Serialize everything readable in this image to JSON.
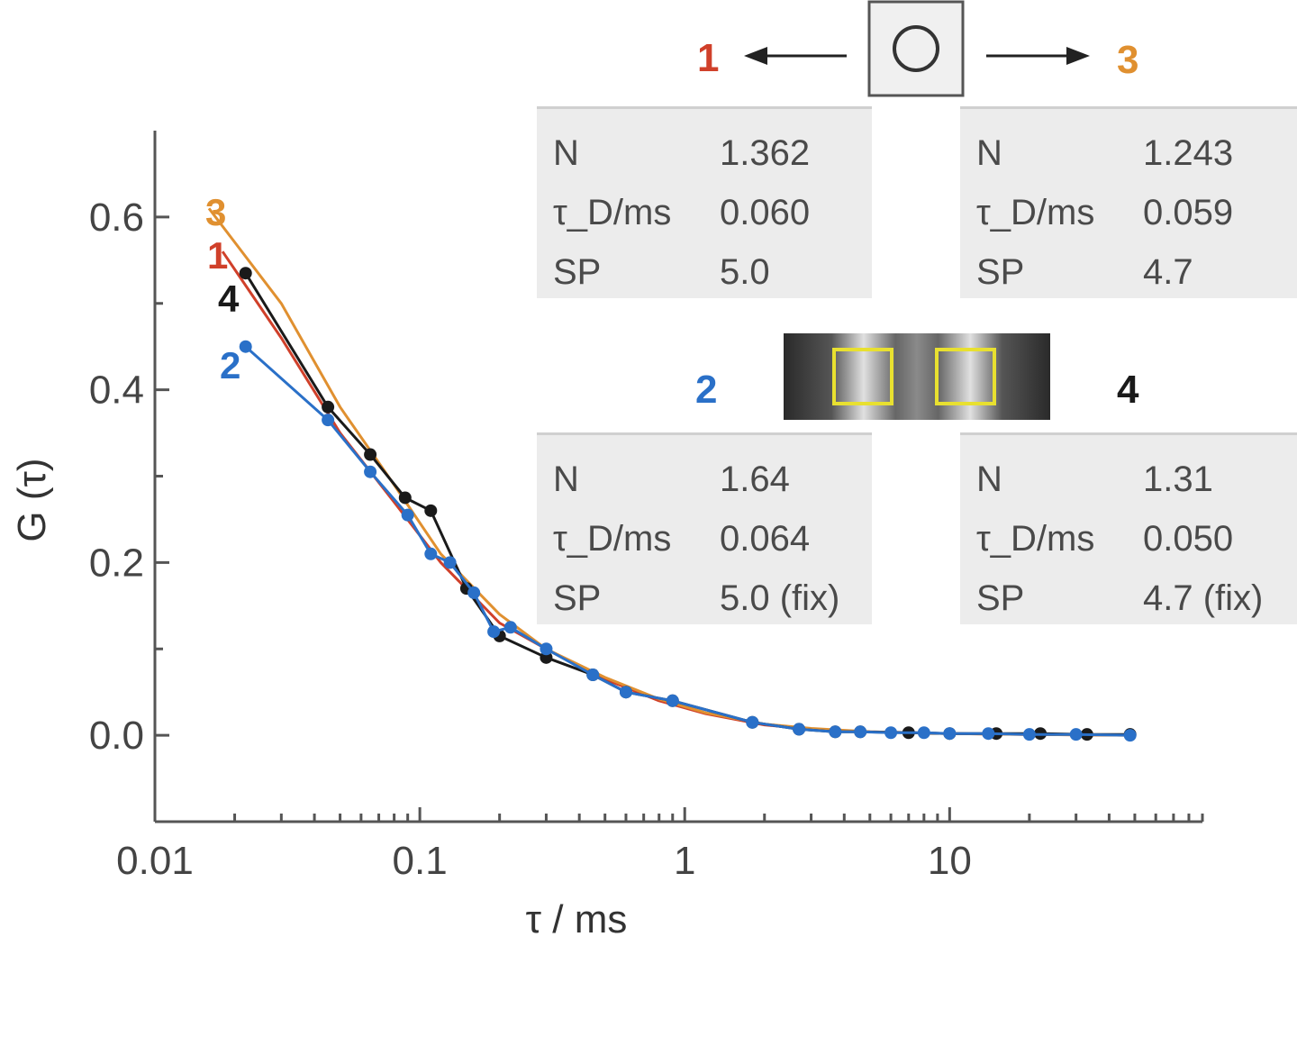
{
  "chart_data": {
    "type": "line",
    "xlabel": "τ / ms",
    "ylabel": "G (τ)",
    "xscale": "log",
    "xlim": [
      0.01,
      90
    ],
    "ylim": [
      -0.1,
      0.7
    ],
    "x_ticks": [
      "0.01",
      "0.1",
      "1",
      "10"
    ],
    "y_ticks": [
      "0.0",
      "0.2",
      "0.4",
      "0.6"
    ],
    "grid": false,
    "series": [
      {
        "name": "1",
        "color": "#d0402a",
        "kind": "fit",
        "x": [
          0.018,
          0.03,
          0.05,
          0.08,
          0.12,
          0.2,
          0.3,
          0.5,
          0.8,
          1.2,
          2,
          3,
          5,
          10,
          20,
          48
        ],
        "values": [
          0.56,
          0.46,
          0.35,
          0.27,
          0.2,
          0.13,
          0.1,
          0.065,
          0.04,
          0.025,
          0.012,
          0.007,
          0.004,
          0.002,
          0.001,
          0.0
        ]
      },
      {
        "name": "3",
        "color": "#e09030",
        "kind": "fit",
        "x": [
          0.016,
          0.03,
          0.05,
          0.08,
          0.12,
          0.2,
          0.3,
          0.5,
          0.8,
          1.2,
          2,
          3,
          5,
          10,
          20,
          48
        ],
        "values": [
          0.61,
          0.5,
          0.38,
          0.29,
          0.21,
          0.14,
          0.1,
          0.067,
          0.042,
          0.026,
          0.013,
          0.008,
          0.004,
          0.002,
          0.001,
          0.0
        ]
      },
      {
        "name": "4",
        "color": "#1a1a1a",
        "kind": "data",
        "x": [
          0.022,
          0.045,
          0.065,
          0.088,
          0.11,
          0.15,
          0.2,
          0.3,
          0.45,
          0.6,
          0.9,
          1.8,
          2.7,
          3.7,
          4.6,
          7,
          10,
          15,
          22,
          33,
          48
        ],
        "values": [
          0.535,
          0.38,
          0.325,
          0.275,
          0.26,
          0.17,
          0.115,
          0.09,
          0.07,
          0.05,
          0.04,
          0.015,
          0.007,
          0.004,
          0.004,
          0.003,
          0.002,
          0.002,
          0.002,
          0.001,
          0.001
        ]
      },
      {
        "name": "2",
        "color": "#2a70c8",
        "kind": "data",
        "x": [
          0.022,
          0.045,
          0.065,
          0.09,
          0.11,
          0.13,
          0.16,
          0.19,
          0.22,
          0.3,
          0.45,
          0.6,
          0.9,
          1.8,
          2.7,
          3.7,
          4.6,
          6,
          8,
          10,
          14,
          20,
          30,
          48
        ],
        "values": [
          0.45,
          0.365,
          0.305,
          0.255,
          0.21,
          0.2,
          0.165,
          0.12,
          0.125,
          0.1,
          0.07,
          0.05,
          0.04,
          0.015,
          0.007,
          0.004,
          0.004,
          0.003,
          0.003,
          0.002,
          0.002,
          0.001,
          0.001,
          0.0
        ]
      }
    ]
  },
  "panels": [
    {
      "id": "1",
      "rows": [
        {
          "k": "N",
          "v": "1.362"
        },
        {
          "k": "τ_D/ms",
          "v": "0.060"
        },
        {
          "k": "SP",
          "v": "5.0"
        }
      ]
    },
    {
      "id": "3",
      "rows": [
        {
          "k": "N",
          "v": "1.243"
        },
        {
          "k": "τ_D/ms",
          "v": "0.059"
        },
        {
          "k": "SP",
          "v": "4.7"
        }
      ]
    },
    {
      "id": "2",
      "rows": [
        {
          "k": "N",
          "v": "1.64"
        },
        {
          "k": "τ_D/ms",
          "v": "0.064"
        },
        {
          "k": "SP",
          "v": "5.0 (fix)"
        }
      ]
    },
    {
      "id": "4",
      "rows": [
        {
          "k": "N",
          "v": "1.31"
        },
        {
          "k": "τ_D/ms",
          "v": "0.050"
        },
        {
          "k": "SP",
          "v": "4.7 (fix)"
        }
      ]
    }
  ],
  "labels": {
    "one": "1",
    "two": "2",
    "three": "3",
    "four": "4"
  },
  "colors": {
    "red": "#d0402a",
    "orange": "#e09030",
    "blue": "#2a70c8",
    "black": "#1a1a1a",
    "highlight": "#e8e030"
  }
}
